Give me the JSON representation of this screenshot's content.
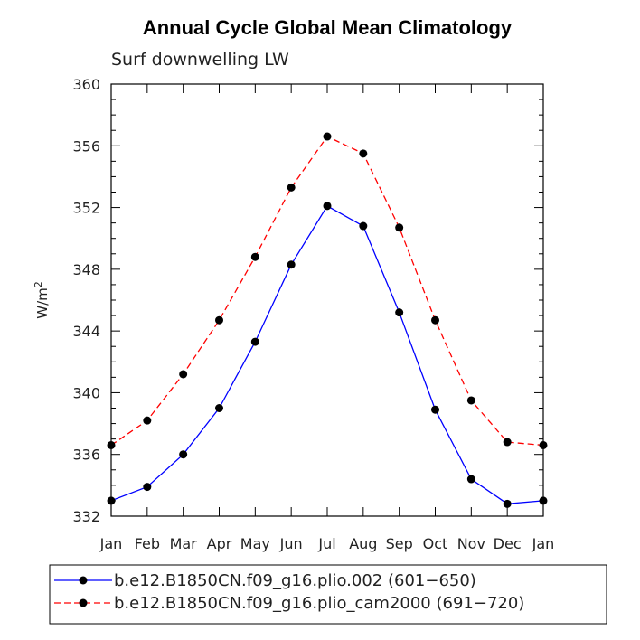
{
  "chart_data": {
    "type": "line",
    "title": "Annual Cycle Global Mean Climatology",
    "subtitle": "Surf downwelling LW",
    "xlabel": "",
    "ylabel": "W/m",
    "ylabel_sup": "2",
    "categories": [
      "Jan",
      "Feb",
      "Mar",
      "Apr",
      "May",
      "Jun",
      "Jul",
      "Aug",
      "Sep",
      "Oct",
      "Nov",
      "Dec",
      "Jan"
    ],
    "ylim": [
      332,
      360
    ],
    "yticks": [
      332,
      336,
      340,
      344,
      348,
      352,
      356,
      360
    ],
    "ytick_labels": [
      "332",
      "336",
      "340",
      "344",
      "348",
      "352",
      "356",
      "360"
    ],
    "legend_position": "bottom",
    "grid": false,
    "series": [
      {
        "name": "b.e12.B1850CN.f09_g16.plio.002 (601−650)",
        "color": "#0000ff",
        "dash": "solid",
        "values": [
          333.0,
          333.9,
          336.0,
          339.0,
          343.3,
          348.3,
          352.1,
          350.8,
          345.2,
          338.9,
          334.4,
          332.8,
          333.0
        ]
      },
      {
        "name": "b.e12.B1850CN.f09_g16.plio_cam2000 (691−720)",
        "color": "#ff0000",
        "dash": "dashed",
        "values": [
          336.6,
          338.2,
          341.2,
          344.7,
          348.8,
          353.3,
          356.6,
          355.5,
          350.7,
          344.7,
          339.5,
          336.8,
          336.6
        ]
      }
    ]
  }
}
